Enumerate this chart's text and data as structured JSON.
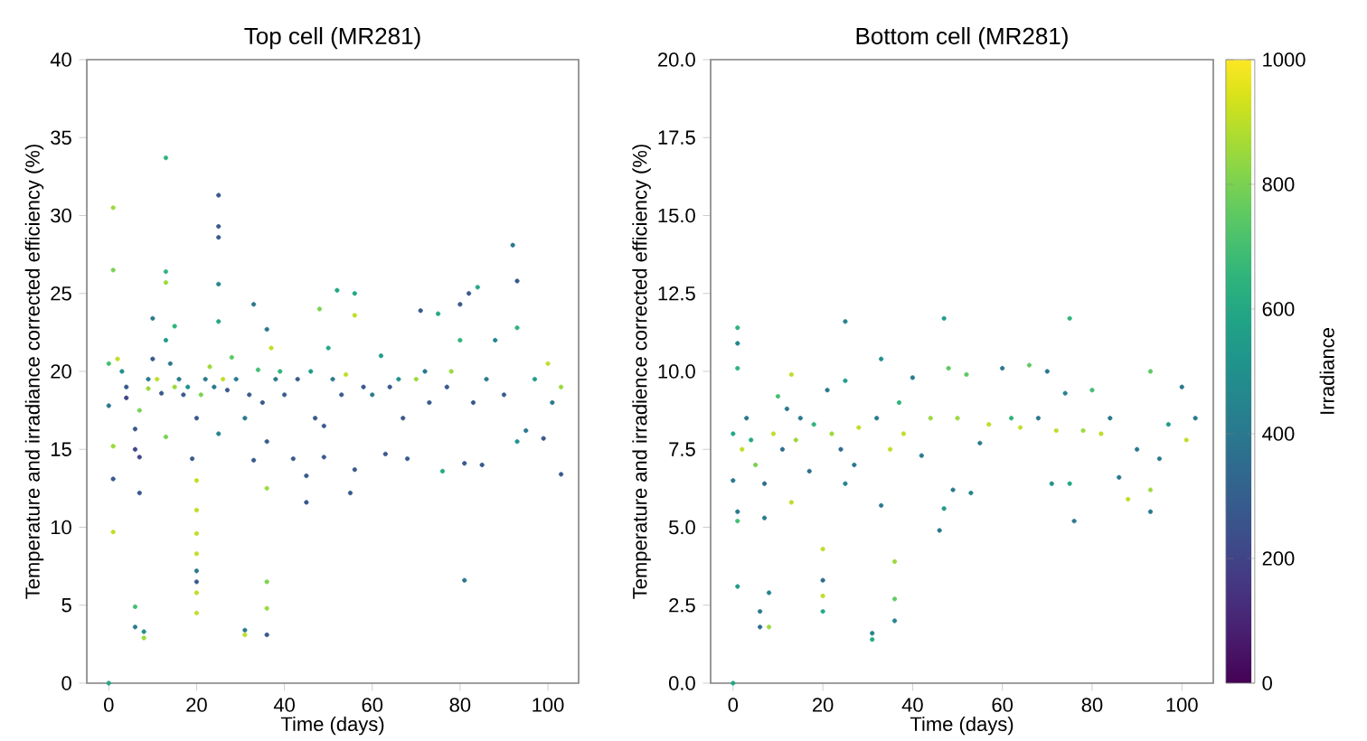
{
  "chart_data": [
    {
      "type": "scatter",
      "title": "Top cell (MR281)",
      "xlabel": "Time (days)",
      "ylabel": "Temperature and irradiance corrected efficiency (%)",
      "marker": "circle",
      "xlim": [
        -5,
        107
      ],
      "ylim": [
        0,
        40
      ],
      "xticks": [
        0,
        20,
        40,
        60,
        80,
        100
      ],
      "yticks": [
        0,
        5,
        10,
        15,
        20,
        25,
        30,
        35,
        40
      ],
      "x": [
        0,
        0,
        1,
        1,
        1,
        1,
        1,
        0,
        2,
        3,
        4,
        4,
        6,
        6,
        7,
        7,
        6,
        6,
        8,
        8,
        7,
        9,
        9,
        10,
        10,
        11,
        12,
        13,
        13,
        13,
        13,
        13,
        14,
        15,
        15,
        16,
        17,
        18,
        19,
        20,
        20,
        20,
        20,
        20,
        20,
        20,
        20,
        20,
        21,
        22,
        23,
        24,
        25,
        25,
        25,
        25,
        25,
        25,
        26,
        27,
        28,
        29,
        31,
        31,
        31,
        32,
        33,
        33,
        34,
        35,
        36,
        36,
        36,
        36,
        36,
        36,
        37,
        38,
        39,
        40,
        42,
        43,
        45,
        45,
        46,
        47,
        48,
        49,
        49,
        50,
        51,
        52,
        53,
        54,
        55,
        56,
        56,
        56,
        58,
        60,
        62,
        63,
        64,
        66,
        67,
        68,
        70,
        71,
        72,
        73,
        75,
        76,
        77,
        78,
        80,
        80,
        81,
        81,
        82,
        83,
        84,
        85,
        86,
        88,
        90,
        92,
        93,
        93,
        93,
        95,
        97,
        99,
        100,
        101,
        103,
        103
      ],
      "values": [
        20.5,
        17.8,
        30.5,
        26.5,
        15.2,
        13.1,
        9.7,
        0,
        20.8,
        20,
        19,
        18.3,
        16.3,
        15,
        14.5,
        12.2,
        4.9,
        3.6,
        3.3,
        2.9,
        17.5,
        19.5,
        18.9,
        20.8,
        23.4,
        19.5,
        18.6,
        33.7,
        26.4,
        25.7,
        22,
        15.8,
        20.5,
        19,
        22.9,
        19.5,
        18.5,
        19,
        14.4,
        17,
        13,
        11.1,
        9.6,
        8.3,
        7.2,
        6.5,
        5.8,
        4.5,
        18.5,
        19.5,
        20.3,
        19,
        31.3,
        29.3,
        28.6,
        25.6,
        23.2,
        16,
        19.5,
        18.8,
        20.9,
        19.5,
        17,
        3.4,
        3.1,
        18.5,
        24.3,
        14.3,
        20.1,
        18,
        22.7,
        15.5,
        12.5,
        6.5,
        4.8,
        3.1,
        21.5,
        19.5,
        20,
        18.5,
        14.4,
        19.5,
        13.3,
        11.6,
        20,
        17,
        24,
        16.5,
        14.5,
        21.5,
        19.5,
        25.2,
        18.5,
        19.8,
        12.2,
        25,
        23.6,
        13.7,
        19,
        18.5,
        21,
        14.7,
        19,
        19.5,
        17,
        14.4,
        19.5,
        23.9,
        20,
        18,
        23.7,
        13.6,
        19,
        20,
        24.3,
        22,
        6.6,
        14.1,
        25,
        18,
        25.4,
        14,
        19.5,
        22,
        18.5,
        28.1,
        25.8,
        22.8,
        15.5,
        16.2,
        19.5,
        15.7,
        20.5,
        18,
        13.4,
        19
      ],
      "colors": [
        "#44bf70",
        "#2a788e",
        "#9bd93c",
        "#7ad151",
        "#9bd93c",
        "#38598c",
        "#bddf26",
        "#22a884",
        "#bddf26",
        "#21918c",
        "#38598c",
        "#414487",
        "#38598c",
        "#414487",
        "#414487",
        "#38598c",
        "#44bf70",
        "#2a788e",
        "#21918c",
        "#9bd93c",
        "#7ad151",
        "#2a788e",
        "#9bd93c",
        "#38598c",
        "#2a788e",
        "#bddf26",
        "#38598c",
        "#2fb47c",
        "#2fb47c",
        "#9bd93c",
        "#1e9b8a",
        "#7ad151",
        "#2a788e",
        "#9bd93c",
        "#2fb47c",
        "#2a788e",
        "#38598c",
        "#21918c",
        "#38598c",
        "#38598c",
        "#bddf26",
        "#bddf26",
        "#bddf26",
        "#bddf26",
        "#2a788e",
        "#38598c",
        "#bddf26",
        "#bddf26",
        "#7ad151",
        "#2a788e",
        "#9bd93c",
        "#2a788e",
        "#38598c",
        "#38598c",
        "#38598c",
        "#25858e",
        "#22a884",
        "#25858e",
        "#bddf26",
        "#38598c",
        "#5ec962",
        "#2a788e",
        "#2a788e",
        "#2a788e",
        "#bddf26",
        "#38598c",
        "#2a788e",
        "#38598c",
        "#44bf70",
        "#38598c",
        "#2a788e",
        "#38598c",
        "#9bd93c",
        "#7ad151",
        "#9bd93c",
        "#38598c",
        "#bddf26",
        "#2a788e",
        "#2fb47c",
        "#38598c",
        "#38598c",
        "#38598c",
        "#38598c",
        "#38598c",
        "#1e9b8a",
        "#38598c",
        "#7ad151",
        "#38598c",
        "#38598c",
        "#22a884",
        "#2a788e",
        "#22a884",
        "#38598c",
        "#bddf26",
        "#38598c",
        "#22a884",
        "#bddf26",
        "#38598c",
        "#38598c",
        "#2a788e",
        "#1e9b8a",
        "#38598c",
        "#38598c",
        "#21918c",
        "#38598c",
        "#38598c",
        "#9bd93c",
        "#38598c",
        "#2a788e",
        "#38598c",
        "#22a884",
        "#22a884",
        "#38598c",
        "#9bd93c",
        "#38598c",
        "#2fb47c",
        "#2a788e",
        "#38598c",
        "#38598c",
        "#38598c",
        "#22a884",
        "#38598c",
        "#2a788e",
        "#25858e",
        "#38598c",
        "#2a788e",
        "#38598c",
        "#2fb47c",
        "#21918c",
        "#2a788e",
        "#1e9b8a",
        "#38598c",
        "#bddf26",
        "#2a788e",
        "#38598c",
        "#9bd93c"
      ]
    },
    {
      "type": "scatter",
      "title": "Bottom cell (MR281)",
      "xlabel": "Time (days)",
      "ylabel": "Temperature and irradience corrected efficiency (%)",
      "marker": "circle",
      "clabel": "Irradiance",
      "xlim": [
        -5,
        107
      ],
      "ylim": [
        0,
        20
      ],
      "xticks": [
        0,
        20,
        40,
        60,
        80,
        100
      ],
      "yticks": [
        {
          "value": 0,
          "label": "0.0"
        },
        {
          "value": 2.5,
          "label": "2.5"
        },
        {
          "value": 5,
          "label": "5.0"
        },
        {
          "value": 7.5,
          "label": "7.5"
        },
        {
          "value": 10,
          "label": "10.0"
        },
        {
          "value": 12.5,
          "label": "12.5"
        },
        {
          "value": 15,
          "label": "15.0"
        },
        {
          "value": 17.5,
          "label": "17.5"
        },
        {
          "value": 20,
          "label": "20.0"
        }
      ],
      "clim": [
        0,
        1000
      ],
      "cticks": [
        0,
        200,
        400,
        600,
        800,
        1000
      ],
      "x": [
        0,
        0,
        1,
        1,
        1,
        1,
        1,
        1,
        0,
        2,
        3,
        4,
        5,
        6,
        6,
        7,
        7,
        8,
        8,
        9,
        10,
        11,
        12,
        13,
        13,
        14,
        15,
        17,
        18,
        20,
        20,
        20,
        20,
        21,
        22,
        24,
        25,
        25,
        25,
        27,
        28,
        31,
        31,
        32,
        33,
        33,
        35,
        36,
        36,
        36,
        37,
        38,
        40,
        42,
        44,
        46,
        47,
        47,
        48,
        49,
        50,
        52,
        53,
        55,
        57,
        60,
        62,
        64,
        66,
        68,
        70,
        71,
        72,
        74,
        75,
        75,
        76,
        78,
        80,
        82,
        84,
        86,
        88,
        90,
        93,
        93,
        93,
        95,
        97,
        100,
        101,
        103
      ],
      "values": [
        8,
        6.5,
        11.4,
        10.9,
        10.1,
        5.5,
        5.2,
        3.1,
        0,
        7.5,
        8.5,
        7.8,
        7,
        2.3,
        1.8,
        6.4,
        5.3,
        2.9,
        1.8,
        8,
        9.2,
        7.5,
        8.8,
        9.9,
        5.8,
        7.8,
        8.5,
        6.8,
        8.3,
        4.3,
        3.3,
        2.8,
        2.3,
        9.4,
        8,
        7.5,
        11.6,
        9.7,
        6.4,
        7,
        8.2,
        1.6,
        1.4,
        8.5,
        10.4,
        5.7,
        7.5,
        3.9,
        2.7,
        2,
        9,
        8,
        9.8,
        7.3,
        8.5,
        4.9,
        11.7,
        5.6,
        10.1,
        6.2,
        8.5,
        9.9,
        6.1,
        7.7,
        8.3,
        10.1,
        8.5,
        8.2,
        10.2,
        8.5,
        10,
        6.4,
        8.1,
        9.3,
        11.7,
        6.4,
        5.2,
        8.1,
        9.4,
        8,
        8.5,
        6.6,
        5.9,
        7.5,
        10,
        6.2,
        5.5,
        7.2,
        8.3,
        9.5,
        7.8,
        8.5
      ],
      "cvalues": [
        600,
        400,
        650,
        450,
        650,
        400,
        700,
        550,
        600,
        900,
        400,
        600,
        800,
        400,
        350,
        350,
        400,
        450,
        850,
        900,
        700,
        350,
        400,
        900,
        900,
        850,
        400,
        350,
        650,
        900,
        350,
        900,
        600,
        400,
        850,
        350,
        450,
        550,
        450,
        400,
        900,
        450,
        600,
        400,
        500,
        400,
        900,
        850,
        750,
        450,
        650,
        900,
        400,
        400,
        850,
        400,
        550,
        550,
        750,
        400,
        850,
        750,
        450,
        400,
        900,
        400,
        650,
        900,
        750,
        400,
        400,
        500,
        900,
        450,
        650,
        600,
        400,
        850,
        700,
        900,
        400,
        400,
        900,
        400,
        750,
        850,
        400,
        400,
        550,
        400,
        900,
        400
      ]
    }
  ]
}
